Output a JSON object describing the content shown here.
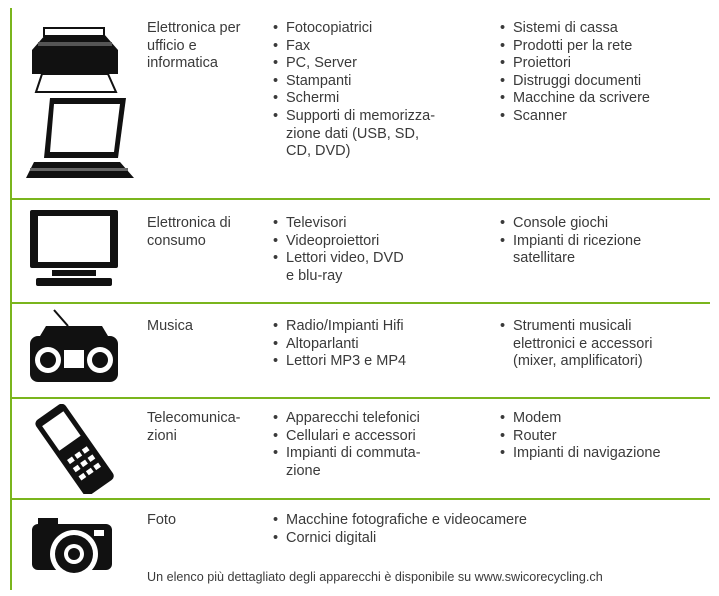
{
  "rows": [
    {
      "category": [
        "Elettronica per",
        "ufficio e",
        "informatica"
      ],
      "column_1": [
        [
          "Fotocopiatrici"
        ],
        [
          "Fax"
        ],
        [
          "PC, Server"
        ],
        [
          "Stampanti"
        ],
        [
          "Schermi"
        ],
        [
          "Supporti di memorizza-",
          "zione dati (USB, SD,",
          "CD, DVD)"
        ]
      ],
      "column_2": [
        [
          "Sistemi di cassa"
        ],
        [
          "Prodotti per la rete"
        ],
        [
          "Proiettori"
        ],
        [
          "Distruggi documenti"
        ],
        [
          "Macchine da scrivere"
        ],
        [
          "Scanner"
        ]
      ]
    },
    {
      "category": [
        "Elettronica di",
        "consumo"
      ],
      "column_1": [
        [
          "Televisori"
        ],
        [
          "Videoproiettori"
        ],
        [
          "Lettori video, DVD",
          "e blu-ray"
        ]
      ],
      "column_2": [
        [
          "Console giochi"
        ],
        [
          "Impianti di ricezione",
          "satellitare"
        ]
      ]
    },
    {
      "category": [
        "Musica"
      ],
      "column_1": [
        [
          "Radio/Impianti Hifi"
        ],
        [
          "Altoparlanti"
        ],
        [
          "Lettori MP3 e MP4"
        ]
      ],
      "column_2": [
        [
          "Strumenti musicali",
          "elettronici e accessori",
          "(mixer, amplificatori)"
        ]
      ]
    },
    {
      "category": [
        "Telecomunica-",
        "zioni"
      ],
      "column_1": [
        [
          "Apparecchi telefonici"
        ],
        [
          "Cellulari e accessori"
        ],
        [
          "Impianti di commuta-",
          "zione"
        ]
      ],
      "column_2": [
        [
          "Modem"
        ],
        [
          "Router"
        ],
        [
          "Impianti di navigazione"
        ]
      ]
    },
    {
      "category": [
        "Foto"
      ],
      "column_1": [
        [
          "Macchine fotografiche e videocamere"
        ],
        [
          "Cornici digitali"
        ]
      ]
    }
  ],
  "footer": "Un elenco più dettagliato degli apparecchi è disponibile su www.swicorecycling.ch"
}
